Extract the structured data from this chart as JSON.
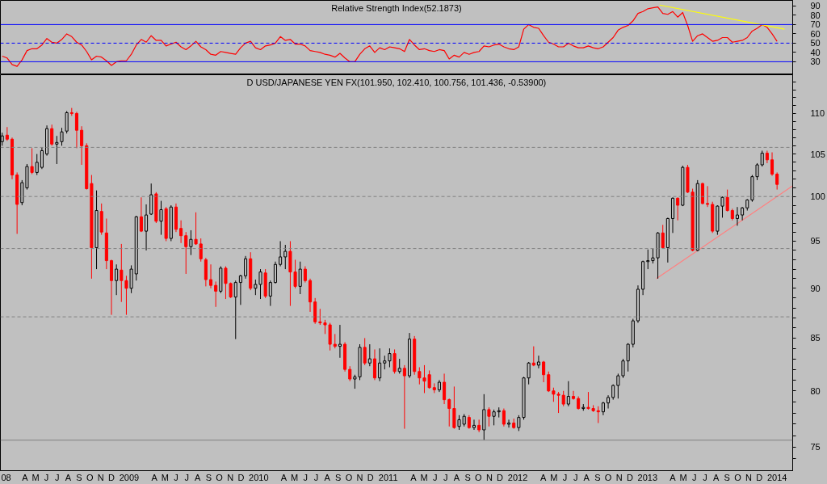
{
  "chart_data": [
    {
      "type": "line",
      "title": "Relative Strength Index(52.1873)",
      "x": [
        "2008-02-08",
        "2008-02-22",
        "2008-03-07",
        "2008-03-21",
        "2008-04-04",
        "2008-04-18",
        "2008-05-02",
        "2008-05-16",
        "2008-05-30",
        "2008-06-13",
        "2008-06-27",
        "2008-07-11",
        "2008-07-25",
        "2008-08-08",
        "2008-08-22",
        "2008-09-05",
        "2008-09-19",
        "2008-10-03",
        "2008-10-17",
        "2008-10-31",
        "2008-11-14",
        "2008-11-28",
        "2008-12-12",
        "2008-12-26",
        "2009-01-09",
        "2009-01-23",
        "2009-02-06",
        "2009-02-20",
        "2009-03-06",
        "2009-03-20",
        "2009-04-03",
        "2009-04-17",
        "2009-05-01",
        "2009-05-15",
        "2009-05-29",
        "2009-06-12",
        "2009-06-26",
        "2009-07-10",
        "2009-07-24",
        "2009-08-07",
        "2009-08-21",
        "2009-09-04",
        "2009-09-18",
        "2009-10-02",
        "2009-10-16",
        "2009-10-30",
        "2009-11-13",
        "2009-11-27",
        "2009-12-11",
        "2009-12-25",
        "2010-01-08",
        "2010-01-22",
        "2010-02-05",
        "2010-02-19",
        "2010-03-05",
        "2010-03-19",
        "2010-04-02",
        "2010-04-16",
        "2010-04-30",
        "2010-05-14",
        "2010-05-28",
        "2010-06-11",
        "2010-06-25",
        "2010-07-09",
        "2010-07-23",
        "2010-08-06",
        "2010-08-20",
        "2010-09-03",
        "2010-09-17",
        "2010-10-01",
        "2010-10-15",
        "2010-10-29",
        "2010-11-12",
        "2010-11-26",
        "2010-12-10",
        "2010-12-24",
        "2011-01-07",
        "2011-01-21",
        "2011-02-04",
        "2011-02-18",
        "2011-03-04",
        "2011-03-18",
        "2011-04-01",
        "2011-04-15",
        "2011-04-29",
        "2011-05-13",
        "2011-05-27",
        "2011-06-10",
        "2011-06-24",
        "2011-07-08",
        "2011-07-22",
        "2011-08-05",
        "2011-08-19",
        "2011-09-02",
        "2011-09-16",
        "2011-09-30",
        "2011-10-14",
        "2011-10-28",
        "2011-11-11",
        "2011-11-25",
        "2011-12-09",
        "2011-12-23",
        "2012-01-06",
        "2012-01-20",
        "2012-02-03",
        "2012-02-17",
        "2012-03-02",
        "2012-03-16",
        "2012-03-30",
        "2012-04-13",
        "2012-04-27",
        "2012-05-11",
        "2012-05-25",
        "2012-06-08",
        "2012-06-22",
        "2012-07-06",
        "2012-07-20",
        "2012-08-03",
        "2012-08-17",
        "2012-08-31",
        "2012-09-14",
        "2012-09-28",
        "2012-10-12",
        "2012-10-26",
        "2012-11-09",
        "2012-11-23",
        "2012-12-07",
        "2012-12-21",
        "2013-01-04",
        "2013-01-18",
        "2013-02-01",
        "2013-02-15",
        "2013-03-01",
        "2013-03-15",
        "2013-03-29",
        "2013-04-12",
        "2013-04-26",
        "2013-05-10",
        "2013-05-24",
        "2013-06-07",
        "2013-06-21",
        "2013-07-05",
        "2013-07-19",
        "2013-08-02",
        "2013-08-16",
        "2013-08-30",
        "2013-09-13",
        "2013-09-27",
        "2013-10-11",
        "2013-10-25",
        "2013-11-08",
        "2013-11-22",
        "2013-12-06",
        "2013-12-20",
        "2014-01-03",
        "2014-01-17",
        "2014-01-31"
      ],
      "series": [
        {
          "color": "#ff0000",
          "values": [
            36,
            34,
            27,
            25,
            32,
            42,
            44,
            44,
            48,
            55,
            51,
            50,
            54,
            60,
            57,
            51,
            48,
            41,
            32,
            36,
            35,
            31,
            26,
            30,
            31,
            31,
            38,
            48,
            54,
            51,
            58,
            53,
            53,
            47,
            49,
            51,
            46,
            43,
            47,
            52,
            46,
            43,
            38,
            37,
            41,
            40,
            39,
            38,
            45,
            50,
            52,
            45,
            43,
            47,
            48,
            50,
            57,
            53,
            54,
            49,
            49,
            47,
            42,
            41,
            40,
            38,
            37,
            35,
            39,
            34,
            30,
            30,
            38,
            44,
            47,
            40,
            45,
            43,
            46,
            45,
            44,
            41,
            54,
            48,
            43,
            44,
            42,
            41,
            43,
            42,
            33,
            37,
            35,
            40,
            38,
            40,
            41,
            47,
            46,
            48,
            49,
            46,
            44,
            43,
            46,
            65,
            70,
            67,
            66,
            58,
            51,
            49,
            46,
            46,
            50,
            47,
            45,
            45,
            47,
            45,
            44,
            46,
            51,
            56,
            64,
            67,
            69,
            74,
            82,
            84,
            87,
            88,
            89,
            82,
            81,
            84,
            78,
            83,
            69,
            52,
            58,
            60,
            56,
            52,
            53,
            56,
            56,
            51,
            52,
            53,
            56,
            63,
            66,
            70,
            67,
            60,
            52
          ]
        },
        {
          "type": "line",
          "color": "#ffff00",
          "x": [
            "2013-03-06",
            "2014-02-21"
          ],
          "values": [
            91,
            65
          ]
        }
      ],
      "xlim": [
        "2008-02-03",
        "2014-03-16"
      ],
      "ylim": [
        16,
        96
      ],
      "yticks": [
        30,
        40,
        50,
        60,
        70,
        80,
        90
      ],
      "ref_lines": [
        {
          "axis": "y",
          "value": 70,
          "color": "#0000ff",
          "line_style": "solid"
        },
        {
          "axis": "y",
          "value": 50,
          "color": "#0000ff",
          "line_style": "dashed"
        },
        {
          "axis": "y",
          "value": 30,
          "color": "#0000ff",
          "line_style": "solid"
        }
      ],
      "tick_labels": "y"
    },
    {
      "type": "candlestick",
      "title": "D USD/JAPANESE YEN FX(101.950, 102.410, 100.756, 101.436, -0.53900)",
      "x": [
        "2008-02-08",
        "2008-02-22",
        "2008-03-07",
        "2008-03-21",
        "2008-04-04",
        "2008-04-18",
        "2008-05-02",
        "2008-05-16",
        "2008-05-30",
        "2008-06-13",
        "2008-06-27",
        "2008-07-11",
        "2008-07-25",
        "2008-08-08",
        "2008-08-22",
        "2008-09-05",
        "2008-09-19",
        "2008-10-03",
        "2008-10-17",
        "2008-10-31",
        "2008-11-14",
        "2008-11-28",
        "2008-12-12",
        "2008-12-26",
        "2009-01-09",
        "2009-01-23",
        "2009-02-06",
        "2009-02-20",
        "2009-03-06",
        "2009-03-20",
        "2009-04-03",
        "2009-04-17",
        "2009-05-01",
        "2009-05-15",
        "2009-05-29",
        "2009-06-12",
        "2009-06-26",
        "2009-07-10",
        "2009-07-24",
        "2009-08-07",
        "2009-08-21",
        "2009-09-04",
        "2009-09-18",
        "2009-10-02",
        "2009-10-16",
        "2009-10-30",
        "2009-11-13",
        "2009-11-27",
        "2009-12-11",
        "2009-12-25",
        "2010-01-08",
        "2010-01-22",
        "2010-02-05",
        "2010-02-19",
        "2010-03-05",
        "2010-03-19",
        "2010-04-02",
        "2010-04-16",
        "2010-04-30",
        "2010-05-14",
        "2010-05-28",
        "2010-06-11",
        "2010-06-25",
        "2010-07-09",
        "2010-07-23",
        "2010-08-06",
        "2010-08-20",
        "2010-09-03",
        "2010-09-17",
        "2010-10-01",
        "2010-10-15",
        "2010-10-29",
        "2010-11-12",
        "2010-11-26",
        "2010-12-10",
        "2010-12-24",
        "2011-01-07",
        "2011-01-21",
        "2011-02-04",
        "2011-02-18",
        "2011-03-04",
        "2011-03-18",
        "2011-04-01",
        "2011-04-15",
        "2011-04-29",
        "2011-05-13",
        "2011-05-27",
        "2011-06-10",
        "2011-06-24",
        "2011-07-08",
        "2011-07-22",
        "2011-08-05",
        "2011-08-19",
        "2011-09-02",
        "2011-09-16",
        "2011-09-30",
        "2011-10-14",
        "2011-10-28",
        "2011-11-11",
        "2011-11-25",
        "2011-12-09",
        "2011-12-23",
        "2012-01-06",
        "2012-01-20",
        "2012-02-03",
        "2012-02-17",
        "2012-03-02",
        "2012-03-16",
        "2012-03-30",
        "2012-04-13",
        "2012-04-27",
        "2012-05-11",
        "2012-05-25",
        "2012-06-08",
        "2012-06-22",
        "2012-07-06",
        "2012-07-20",
        "2012-08-03",
        "2012-08-17",
        "2012-08-31",
        "2012-09-14",
        "2012-09-28",
        "2012-10-12",
        "2012-10-26",
        "2012-11-09",
        "2012-11-23",
        "2012-12-07",
        "2012-12-21",
        "2013-01-04",
        "2013-01-18",
        "2013-02-01",
        "2013-02-15",
        "2013-03-01",
        "2013-03-15",
        "2013-03-29",
        "2013-04-12",
        "2013-04-26",
        "2013-05-10",
        "2013-05-24",
        "2013-06-07",
        "2013-06-21",
        "2013-07-05",
        "2013-07-19",
        "2013-08-02",
        "2013-08-16",
        "2013-08-30",
        "2013-09-13",
        "2013-09-27",
        "2013-10-11",
        "2013-10-25",
        "2013-11-08",
        "2013-11-22",
        "2013-12-06",
        "2013-12-20",
        "2014-01-03",
        "2014-01-17",
        "2014-01-31"
      ],
      "ohlc": [
        [
          106.5,
          107.6,
          106.0,
          107.2
        ],
        [
          107.3,
          108.3,
          106.6,
          106.8
        ],
        [
          106.8,
          107.0,
          102.0,
          102.5
        ],
        [
          102.5,
          102.8,
          95.8,
          99.1
        ],
        [
          99.3,
          101.9,
          99.0,
          101.6
        ],
        [
          101.0,
          103.8,
          100.8,
          103.5
        ],
        [
          103.5,
          105.7,
          102.6,
          102.8
        ],
        [
          102.8,
          105.0,
          102.5,
          104.0
        ],
        [
          103.4,
          105.8,
          103.2,
          105.4
        ],
        [
          105.0,
          108.5,
          104.8,
          108.1
        ],
        [
          108.1,
          108.6,
          106.0,
          106.2
        ],
        [
          106.2,
          107.2,
          103.8,
          106.4
        ],
        [
          106.5,
          108.2,
          106.0,
          107.7
        ],
        [
          107.8,
          110.3,
          107.5,
          110.1
        ],
        [
          110.1,
          110.7,
          109.7,
          110.0
        ],
        [
          110.0,
          110.2,
          105.7,
          107.9
        ],
        [
          107.9,
          108.4,
          103.7,
          106.0
        ],
        [
          106.0,
          106.3,
          100.8,
          100.9
        ],
        [
          101.5,
          102.5,
          91.0,
          94.3
        ],
        [
          94.3,
          100.7,
          92.0,
          98.4
        ],
        [
          98.3,
          99.2,
          95.7,
          96.0
        ],
        [
          95.9,
          97.5,
          92.0,
          92.9
        ],
        [
          92.9,
          93.0,
          87.3,
          90.8
        ],
        [
          90.8,
          92.5,
          89.3,
          92.0
        ],
        [
          91.9,
          94.7,
          88.6,
          90.8
        ],
        [
          90.8,
          91.3,
          87.3,
          90.0
        ],
        [
          90.0,
          92.4,
          89.5,
          92.0
        ],
        [
          91.5,
          97.8,
          90.8,
          97.7
        ],
        [
          97.7,
          99.9,
          96.0,
          96.1
        ],
        [
          96.1,
          99.1,
          94.0,
          97.9
        ],
        [
          98.0,
          101.5,
          97.9,
          100.2
        ],
        [
          100.3,
          100.5,
          97.0,
          97.2
        ],
        [
          97.2,
          99.5,
          95.7,
          98.5
        ],
        [
          98.6,
          98.8,
          95.0,
          95.3
        ],
        [
          95.3,
          99.0,
          95.0,
          98.8
        ],
        [
          98.8,
          99.2,
          96.0,
          96.3
        ],
        [
          96.4,
          97.3,
          94.8,
          95.6
        ],
        [
          95.6,
          96.0,
          91.5,
          94.4
        ],
        [
          94.4,
          96.2,
          93.5,
          95.2
        ],
        [
          95.2,
          98.2,
          94.6,
          94.7
        ],
        [
          94.7,
          95.3,
          92.8,
          93.1
        ],
        [
          93.0,
          93.2,
          90.2,
          90.9
        ],
        [
          90.9,
          92.5,
          90.0,
          90.3
        ],
        [
          90.3,
          90.7,
          88.1,
          89.7
        ],
        [
          89.7,
          92.3,
          89.5,
          92.1
        ],
        [
          92.1,
          92.3,
          88.9,
          90.5
        ],
        [
          90.5,
          90.6,
          89.0,
          89.1
        ],
        [
          89.1,
          90.8,
          84.9,
          90.6
        ],
        [
          90.6,
          91.4,
          88.3,
          91.3
        ],
        [
          91.3,
          93.4,
          91.0,
          93.1
        ],
        [
          93.1,
          93.8,
          89.8,
          90.0
        ],
        [
          90.0,
          90.9,
          89.3,
          90.4
        ],
        [
          90.4,
          92.0,
          88.9,
          91.7
        ],
        [
          91.6,
          92.0,
          89.0,
          89.2
        ],
        [
          89.2,
          90.8,
          88.2,
          90.6
        ],
        [
          90.6,
          92.8,
          90.5,
          92.5
        ],
        [
          92.5,
          95.0,
          92.3,
          93.3
        ],
        [
          93.3,
          94.6,
          92.0,
          93.9
        ],
        [
          93.9,
          95.0,
          88.2,
          91.7
        ],
        [
          91.7,
          93.0,
          90.0,
          90.2
        ],
        [
          90.2,
          92.8,
          89.4,
          92.0
        ],
        [
          92.0,
          92.3,
          90.6,
          90.8
        ],
        [
          90.8,
          91.0,
          87.6,
          88.6
        ],
        [
          88.6,
          89.0,
          86.4,
          86.6
        ],
        [
          86.6,
          87.9,
          86.3,
          86.5
        ],
        [
          86.5,
          86.8,
          85.4,
          86.3
        ],
        [
          86.3,
          86.5,
          83.8,
          84.4
        ],
        [
          84.4,
          85.4,
          84.0,
          84.2
        ],
        [
          84.2,
          86.3,
          83.1,
          84.4
        ],
        [
          84.4,
          84.6,
          81.8,
          82.0
        ],
        [
          82.0,
          82.3,
          80.9,
          81.1
        ],
        [
          81.1,
          81.5,
          80.2,
          81.3
        ],
        [
          81.3,
          84.4,
          81.0,
          84.1
        ],
        [
          84.1,
          85.0,
          82.4,
          82.6
        ],
        [
          82.6,
          84.4,
          82.3,
          83.0
        ],
        [
          83.0,
          83.9,
          81.0,
          81.2
        ],
        [
          81.2,
          84.0,
          80.9,
          82.6
        ],
        [
          82.6,
          83.3,
          82.0,
          82.8
        ],
        [
          82.8,
          84.0,
          82.2,
          83.5
        ],
        [
          83.5,
          83.9,
          81.6,
          81.8
        ],
        [
          81.8,
          83.0,
          81.6,
          82.1
        ],
        [
          82.1,
          82.4,
          76.6,
          81.4
        ],
        [
          81.4,
          85.5,
          81.2,
          84.9
        ],
        [
          84.9,
          85.2,
          81.5,
          81.8
        ],
        [
          81.8,
          82.2,
          80.6,
          81.2
        ],
        [
          81.2,
          82.4,
          79.8,
          80.9
        ],
        [
          81.5,
          81.9,
          80.2,
          80.3
        ],
        [
          80.3,
          80.7,
          79.8,
          80.1
        ],
        [
          80.1,
          81.0,
          79.9,
          80.8
        ],
        [
          80.8,
          81.6,
          78.8,
          79.2
        ],
        [
          79.2,
          79.3,
          76.8,
          78.4
        ],
        [
          78.4,
          80.4,
          76.6,
          76.7
        ],
        [
          76.8,
          77.8,
          76.5,
          77.4
        ],
        [
          77.0,
          77.9,
          76.8,
          77.7
        ],
        [
          77.6,
          77.8,
          76.6,
          76.7
        ],
        [
          76.7,
          77.4,
          76.5,
          76.9
        ],
        [
          76.9,
          77.4,
          76.3,
          76.5
        ],
        [
          76.5,
          79.7,
          75.6,
          78.3
        ],
        [
          78.3,
          78.5,
          76.8,
          77.7
        ],
        [
          77.7,
          78.3,
          76.9,
          78.1
        ],
        [
          78.1,
          78.5,
          77.6,
          78.2
        ],
        [
          78.2,
          78.4,
          76.8,
          77.0
        ],
        [
          77.0,
          77.4,
          76.7,
          77.1
        ],
        [
          77.1,
          77.5,
          76.6,
          76.7
        ],
        [
          76.7,
          77.8,
          76.4,
          77.6
        ],
        [
          77.6,
          81.3,
          77.4,
          81.2
        ],
        [
          81.2,
          82.7,
          80.6,
          82.6
        ],
        [
          82.6,
          84.2,
          82.3,
          82.4
        ],
        [
          82.4,
          83.3,
          82.1,
          82.7
        ],
        [
          82.7,
          82.8,
          80.8,
          81.5
        ],
        [
          81.5,
          81.8,
          79.9,
          80.0
        ],
        [
          80.0,
          80.3,
          79.0,
          79.7
        ],
        [
          79.7,
          79.9,
          78.0,
          79.6
        ],
        [
          79.6,
          80.0,
          78.6,
          78.8
        ],
        [
          78.8,
          80.9,
          78.6,
          79.5
        ],
        [
          79.5,
          80.0,
          79.2,
          79.3
        ],
        [
          79.3,
          79.5,
          78.3,
          78.4
        ],
        [
          78.4,
          78.8,
          78.2,
          78.5
        ],
        [
          78.5,
          79.9,
          78.3,
          78.4
        ],
        [
          78.4,
          78.7,
          78.1,
          78.2
        ],
        [
          78.2,
          78.6,
          77.1,
          78.1
        ],
        [
          78.1,
          79.0,
          77.8,
          78.9
        ],
        [
          78.9,
          79.6,
          78.4,
          79.4
        ],
        [
          79.4,
          80.6,
          79.2,
          80.5
        ],
        [
          80.5,
          81.6,
          79.3,
          81.4
        ],
        [
          81.4,
          83.0,
          81.2,
          82.8
        ],
        [
          82.8,
          84.5,
          81.8,
          84.4
        ],
        [
          84.4,
          86.9,
          84.1,
          86.7
        ],
        [
          86.7,
          90.3,
          86.5,
          89.9
        ],
        [
          89.9,
          92.9,
          89.3,
          92.8
        ],
        [
          92.8,
          94.1,
          92.0,
          92.9
        ],
        [
          92.9,
          94.2,
          92.6,
          93.2
        ],
        [
          93.2,
          96.0,
          91.0,
          95.9
        ],
        [
          95.9,
          96.8,
          94.2,
          94.3
        ],
        [
          94.3,
          97.6,
          92.7,
          97.5
        ],
        [
          97.5,
          99.9,
          95.9,
          99.8
        ],
        [
          99.8,
          99.9,
          97.3,
          99.0
        ],
        [
          99.0,
          103.6,
          98.9,
          103.4
        ],
        [
          103.4,
          103.7,
          100.4,
          100.5
        ],
        [
          100.5,
          100.9,
          93.9,
          94.0
        ],
        [
          94.0,
          101.9,
          93.9,
          101.5
        ],
        [
          101.5,
          101.6,
          99.1,
          99.2
        ],
        [
          99.2,
          101.2,
          98.8,
          99.1
        ],
        [
          99.1,
          99.4,
          95.9,
          96.1
        ],
        [
          96.1,
          99.0,
          95.7,
          98.9
        ],
        [
          98.9,
          100.0,
          97.6,
          99.9
        ],
        [
          99.9,
          100.8,
          98.3,
          98.4
        ],
        [
          98.4,
          98.6,
          97.3,
          97.5
        ],
        [
          97.5,
          98.8,
          96.7,
          97.9
        ],
        [
          97.9,
          98.8,
          97.3,
          98.7
        ],
        [
          98.7,
          99.7,
          98.4,
          99.6
        ],
        [
          99.6,
          102.5,
          99.4,
          102.3
        ],
        [
          102.3,
          103.9,
          101.9,
          103.7
        ],
        [
          103.7,
          105.4,
          103.5,
          105.1
        ],
        [
          105.1,
          105.4,
          103.9,
          104.3
        ],
        [
          104.3,
          105.2,
          102.4,
          102.6
        ],
        [
          102.6,
          102.8,
          100.8,
          101.4
        ]
      ],
      "colors": [
        "#000000",
        "#ff0000",
        "#ff0000",
        "#ff0000",
        "#000000",
        "#000000",
        "#ff0000",
        "#000000",
        "#000000",
        "#000000",
        "#ff0000",
        "#000000",
        "#000000",
        "#000000",
        "#ff0000",
        "#ff0000",
        "#ff0000",
        "#ff0000",
        "#ff0000",
        "#000000",
        "#ff0000",
        "#ff0000",
        "#ff0000",
        "#000000",
        "#ff0000",
        "#ff0000",
        "#000000",
        "#000000",
        "#ff0000",
        "#000000",
        "#000000",
        "#ff0000",
        "#000000",
        "#ff0000",
        "#000000",
        "#ff0000",
        "#ff0000",
        "#ff0000",
        "#000000",
        "#ff0000",
        "#ff0000",
        "#ff0000",
        "#ff0000",
        "#ff0000",
        "#000000",
        "#ff0000",
        "#ff0000",
        "#000000",
        "#000000",
        "#000000",
        "#ff0000",
        "#000000",
        "#000000",
        "#ff0000",
        "#000000",
        "#000000",
        "#000000",
        "#000000",
        "#ff0000",
        "#ff0000",
        "#000000",
        "#ff0000",
        "#ff0000",
        "#ff0000",
        "#ff0000",
        "#ff0000",
        "#ff0000",
        "#ff0000",
        "#000000",
        "#ff0000",
        "#ff0000",
        "#000000",
        "#000000",
        "#ff0000",
        "#000000",
        "#ff0000",
        "#000000",
        "#000000",
        "#000000",
        "#ff0000",
        "#000000",
        "#ff0000",
        "#000000",
        "#ff0000",
        "#ff0000",
        "#ff0000",
        "#ff0000",
        "#ff0000",
        "#000000",
        "#ff0000",
        "#ff0000",
        "#ff0000",
        "#000000",
        "#000000",
        "#ff0000",
        "#000000",
        "#ff0000",
        "#000000",
        "#ff0000",
        "#000000",
        "#000000",
        "#ff0000",
        "#000000",
        "#ff0000",
        "#000000",
        "#000000",
        "#000000",
        "#ff0000",
        "#000000",
        "#ff0000",
        "#ff0000",
        "#ff0000",
        "#ff0000",
        "#ff0000",
        "#000000",
        "#ff0000",
        "#ff0000",
        "#000000",
        "#ff0000",
        "#ff0000",
        "#ff0000",
        "#000000",
        "#000000",
        "#000000",
        "#000000",
        "#000000",
        "#000000",
        "#000000",
        "#000000",
        "#000000",
        "#000000",
        "#000000",
        "#000000",
        "#ff0000",
        "#000000",
        "#000000",
        "#ff0000",
        "#000000",
        "#ff0000",
        "#ff0000",
        "#000000",
        "#ff0000",
        "#ff0000",
        "#ff0000",
        "#000000",
        "#000000",
        "#ff0000",
        "#ff0000",
        "#000000",
        "#000000",
        "#000000",
        "#000000",
        "#000000",
        "#000000",
        "#ff0000",
        "#ff0000",
        "#ff0000"
      ],
      "series": [
        {
          "type": "line",
          "color": "#ff8080",
          "x": [
            "2013-02-25",
            "2014-03-15"
          ],
          "values": [
            91.0,
            101.2
          ]
        }
      ],
      "xlim": [
        "2008-02-03",
        "2014-03-16"
      ],
      "ylim": [
        73,
        115
      ],
      "log": true,
      "yticks": [
        {
          "value": 74,
          "label": null
        },
        75,
        {
          "value": 76,
          "label": null
        },
        {
          "value": 77,
          "label": null
        },
        {
          "value": 78,
          "label": null
        },
        {
          "value": 79,
          "label": null
        },
        80,
        {
          "value": 81,
          "label": null
        },
        {
          "value": 82,
          "label": null
        },
        {
          "value": 83,
          "label": null
        },
        {
          "value": 84,
          "label": null
        },
        85,
        {
          "value": 86,
          "label": null
        },
        {
          "value": 87,
          "label": null
        },
        {
          "value": 88,
          "label": null
        },
        {
          "value": 89,
          "label": null
        },
        90,
        {
          "value": 91,
          "label": null
        },
        {
          "value": 92,
          "label": null
        },
        {
          "value": 93,
          "label": null
        },
        {
          "value": 94,
          "label": null
        },
        95,
        {
          "value": 96,
          "label": null
        },
        {
          "value": 97,
          "label": null
        },
        {
          "value": 98,
          "label": null
        },
        {
          "value": 99,
          "label": null
        },
        100,
        {
          "value": 101,
          "label": null
        },
        {
          "value": 102,
          "label": null
        },
        {
          "value": 103,
          "label": null
        },
        {
          "value": 104,
          "label": null
        },
        105,
        {
          "value": 106,
          "label": null
        },
        {
          "value": 107,
          "label": null
        },
        {
          "value": 108,
          "label": null
        },
        {
          "value": 109,
          "label": null
        },
        110,
        {
          "value": 111,
          "label": null
        },
        {
          "value": 112,
          "label": null
        },
        {
          "value": 113,
          "label": null
        },
        {
          "value": 114,
          "label": null
        }
      ],
      "xticks": [
        {
          "value": "2008-02-19",
          "label": "08"
        },
        {
          "value": "2008-04-12",
          "label": "A"
        },
        {
          "value": "2008-05-12",
          "label": "M"
        },
        {
          "value": "2008-06-12",
          "label": "J"
        },
        {
          "value": "2008-07-12",
          "label": "J"
        },
        {
          "value": "2008-08-12",
          "label": "A"
        },
        {
          "value": "2008-09-12",
          "label": "S"
        },
        {
          "value": "2008-10-12",
          "label": "O"
        },
        {
          "value": "2008-11-12",
          "label": "N"
        },
        {
          "value": "2008-12-12",
          "label": "D"
        },
        {
          "value": "2009-01-31",
          "label": "2009"
        },
        {
          "value": "2009-04-12",
          "label": "A"
        },
        {
          "value": "2009-05-12",
          "label": "M"
        },
        {
          "value": "2009-06-12",
          "label": "J"
        },
        {
          "value": "2009-07-12",
          "label": "J"
        },
        {
          "value": "2009-08-12",
          "label": "A"
        },
        {
          "value": "2009-09-12",
          "label": "S"
        },
        {
          "value": "2009-10-12",
          "label": "O"
        },
        {
          "value": "2009-11-12",
          "label": "N"
        },
        {
          "value": "2009-12-12",
          "label": "D"
        },
        {
          "value": "2010-01-31",
          "label": "2010"
        },
        {
          "value": "2010-04-12",
          "label": "A"
        },
        {
          "value": "2010-05-12",
          "label": "M"
        },
        {
          "value": "2010-06-12",
          "label": "J"
        },
        {
          "value": "2010-07-12",
          "label": "J"
        },
        {
          "value": "2010-08-12",
          "label": "A"
        },
        {
          "value": "2010-09-12",
          "label": "S"
        },
        {
          "value": "2010-10-12",
          "label": "O"
        },
        {
          "value": "2010-11-12",
          "label": "N"
        },
        {
          "value": "2010-12-12",
          "label": "D"
        },
        {
          "value": "2011-01-31",
          "label": "2011"
        },
        {
          "value": "2011-04-12",
          "label": "A"
        },
        {
          "value": "2011-05-12",
          "label": "M"
        },
        {
          "value": "2011-06-12",
          "label": "J"
        },
        {
          "value": "2011-07-12",
          "label": "J"
        },
        {
          "value": "2011-08-12",
          "label": "A"
        },
        {
          "value": "2011-09-12",
          "label": "S"
        },
        {
          "value": "2011-10-12",
          "label": "O"
        },
        {
          "value": "2011-11-12",
          "label": "N"
        },
        {
          "value": "2011-12-12",
          "label": "D"
        },
        {
          "value": "2012-01-31",
          "label": "2012"
        },
        {
          "value": "2012-04-12",
          "label": "A"
        },
        {
          "value": "2012-05-12",
          "label": "M"
        },
        {
          "value": "2012-06-12",
          "label": "J"
        },
        {
          "value": "2012-07-12",
          "label": "J"
        },
        {
          "value": "2012-08-12",
          "label": "A"
        },
        {
          "value": "2012-09-12",
          "label": "S"
        },
        {
          "value": "2012-10-12",
          "label": "O"
        },
        {
          "value": "2012-11-12",
          "label": "N"
        },
        {
          "value": "2012-12-12",
          "label": "D"
        },
        {
          "value": "2013-01-31",
          "label": "2013"
        },
        {
          "value": "2013-04-12",
          "label": "A"
        },
        {
          "value": "2013-05-12",
          "label": "M"
        },
        {
          "value": "2013-06-12",
          "label": "J"
        },
        {
          "value": "2013-07-12",
          "label": "J"
        },
        {
          "value": "2013-08-12",
          "label": "A"
        },
        {
          "value": "2013-09-12",
          "label": "S"
        },
        {
          "value": "2013-10-12",
          "label": "O"
        },
        {
          "value": "2013-11-12",
          "label": "N"
        },
        {
          "value": "2013-12-12",
          "label": "D"
        },
        {
          "value": "2014-01-31",
          "label": "2014"
        }
      ],
      "ref_lines": [
        {
          "axis": "y",
          "value": 105.8,
          "color": "#808080",
          "line_style": "dashed"
        },
        {
          "axis": "y",
          "value": 100.0,
          "color": "#808080",
          "line_style": "dashed"
        },
        {
          "axis": "y",
          "value": 94.2,
          "color": "#808080",
          "line_style": "dashed"
        },
        {
          "axis": "y",
          "value": 87.1,
          "color": "#808080",
          "line_style": "dashed"
        },
        {
          "axis": "y",
          "value": 75.6,
          "color": "#808080",
          "line_style": "solid"
        }
      ]
    }
  ]
}
